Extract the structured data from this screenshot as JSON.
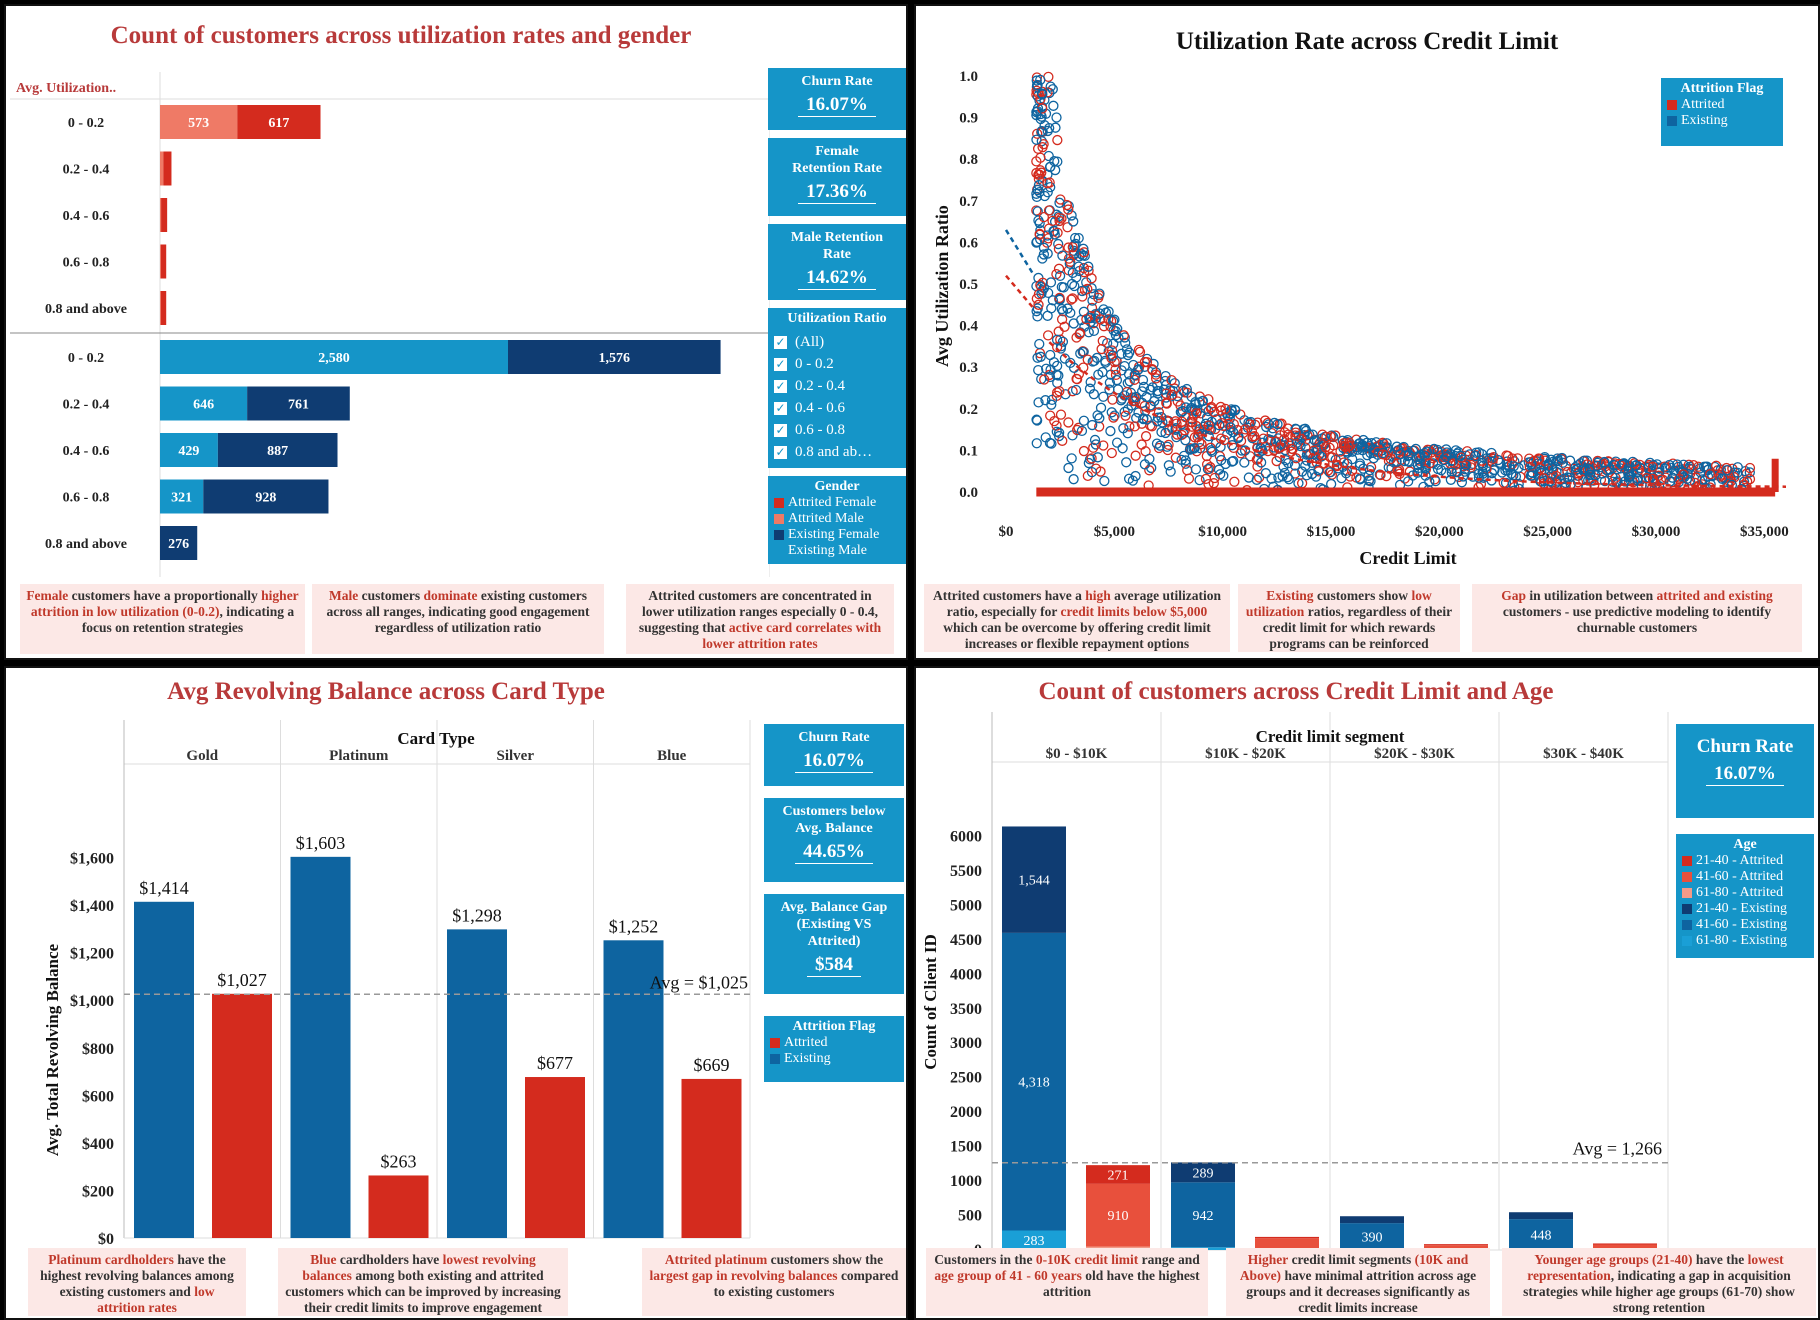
{
  "panel1": {
    "title": "Count of customers across utilization rates and gender",
    "header": "Avg. Utilization..",
    "categories": [
      "0 - 0.2",
      "0.2 - 0.4",
      "0.4 - 0.6",
      "0.6 - 0.8",
      "0.8 and above"
    ],
    "kpis": [
      {
        "label": "Churn Rate",
        "value": "16.07%"
      },
      {
        "label": "Female Retention Rate",
        "value": "17.36%"
      },
      {
        "label": "Male Retention Rate",
        "value": "14.62%"
      }
    ],
    "filter": {
      "title": "Utilization Ratio",
      "items": [
        "(All)",
        "0 - 0.2",
        "0.2 - 0.4",
        "0.4 - 0.6",
        "0.6 - 0.8",
        "0.8 and ab…"
      ]
    },
    "legend": {
      "title": "Gender",
      "items": [
        {
          "label": "Attrited Female",
          "color": "#d42b1e"
        },
        {
          "label": "Attrited Male",
          "color": "#ef7a66"
        },
        {
          "label": "Existing Female",
          "color": "#0f3c72"
        },
        {
          "label": "Existing Male",
          "color": "#1595c8"
        }
      ]
    },
    "notes": [
      {
        "pre": "",
        "hl": "Female",
        "mid": " customers have a proportionally ",
        "hl2": "higher attrition in low utilization (0-0.2)",
        "post": ", indicating a focus on retention strategies"
      },
      {
        "pre": "",
        "hl": "Male",
        "mid": " customers ",
        "hl2": "dominate",
        "post": " existing customers across all ranges, indicating good engagement regardless of utilization ratio"
      },
      {
        "pre": "Attrited customers are concentrated in lower utilization ranges especially 0 - 0.4, suggesting that ",
        "hl": "active card correlates with lower attrition rates",
        "mid": "",
        "hl2": "",
        "post": ""
      }
    ]
  },
  "panel2": {
    "title": "Utilization Rate across Credit Limit",
    "legend": {
      "title": "Attrition Flag",
      "items": [
        {
          "label": "Attrited",
          "color": "#d42b1e"
        },
        {
          "label": "Existing",
          "color": "#0e64a0"
        }
      ]
    },
    "notes": [
      {
        "pre": "Attrited customers have a ",
        "hl": "high",
        "mid": " average utilization ratio, especially for ",
        "hl2": "credit limits below $5,000",
        "post": " which can be overcome by offering credit limit increases or flexible repayment options"
      },
      {
        "pre": "",
        "hl": "Existing",
        "mid": " customers show ",
        "hl2": "low utilization",
        "post": " ratios, regardless of their credit limit for which rewards programs can be reinforced"
      },
      {
        "pre": "",
        "hl": "Gap",
        "mid": " in utilization between ",
        "hl2": "attrited and existing",
        "post": " customers - use predictive modeling to identify churnable customers"
      }
    ]
  },
  "panel3": {
    "title": "Avg Revolving Balance across Card Type",
    "header": "Card Type",
    "kpis": [
      {
        "label": "Churn Rate",
        "value": "16.07%"
      },
      {
        "label": "Customers below Avg. Balance",
        "value": "44.65%"
      },
      {
        "label": "Avg. Balance Gap (Existing VS Attrited)",
        "value": "$584"
      }
    ],
    "legend": {
      "title": "Attrition Flag",
      "items": [
        {
          "label": "Attrited",
          "color": "#d42b1e"
        },
        {
          "label": "Existing",
          "color": "#0e64a0"
        }
      ]
    },
    "notes": [
      {
        "pre": "",
        "hl": "Platinum cardholders",
        "mid": " have the highest revolving balances among existing customers and ",
        "hl2": "low attrition rates",
        "post": ""
      },
      {
        "pre": "",
        "hl": "Blue",
        "mid": " cardholders have ",
        "hl2": "lowest revolving balances",
        "post": " among both existing and attrited customers which can be improved by increasing their credit limits to improve engagement"
      },
      {
        "pre": "",
        "hl": "Attrited platinum",
        "mid": " customers show the ",
        "hl2": "largest gap in revolving balances",
        "post": " compared to existing customers"
      }
    ]
  },
  "panel4": {
    "title": "Count of customers across Credit Limit and Age",
    "header": "Credit limit segment",
    "kpis": [
      {
        "label": "Churn Rate",
        "value": "16.07%"
      }
    ],
    "legend": {
      "title": "Age",
      "items": [
        {
          "label": "21-40 - Attrited",
          "color": "#d42b1e"
        },
        {
          "label": "41-60 - Attrited",
          "color": "#e8503c"
        },
        {
          "label": "61-80 - Attrited",
          "color": "#f29a88"
        },
        {
          "label": "21-40 - Existing",
          "color": "#0f3c72"
        },
        {
          "label": "41-60 - Existing",
          "color": "#0e64a0"
        },
        {
          "label": "61-80 - Existing",
          "color": "#1a9fd6"
        }
      ]
    },
    "notes": [
      {
        "pre": "Customers in the ",
        "hl": "0-10K credit limit",
        "mid": " range and ",
        "hl2": "age group of 41 - 60 years",
        "post": " old have the highest attrition"
      },
      {
        "pre": "",
        "hl": "Higher",
        "mid": " credit limit segments ",
        "hl2": "(10K and Above)",
        "post": " have minimal attrition across age groups and it decreases significantly as credit limits increase"
      },
      {
        "pre": "",
        "hl": "Younger age groups (21-40)",
        "mid": " have the ",
        "hl2": "lowest representation",
        "post": ", indicating a gap in acquisition strategies while higher age groups (61-70) show strong retention"
      }
    ]
  },
  "chart_data": [
    {
      "type": "bar",
      "orientation": "horizontal",
      "stacked": true,
      "title": "Count of customers across utilization rates and gender",
      "categories": [
        "0 - 0.2",
        "0.2 - 0.4",
        "0.4 - 0.6",
        "0.6 - 0.8",
        "0.8 and above"
      ],
      "groups": [
        {
          "name": "Attrited",
          "series": [
            {
              "name": "Attrited Male",
              "color": "#ef7a66",
              "values": [
                573,
                25,
                8,
                6,
                6
              ]
            },
            {
              "name": "Attrited Female",
              "color": "#d42b1e",
              "values": [
                617,
                60,
                45,
                40,
                40
              ]
            }
          ]
        },
        {
          "name": "Existing",
          "series": [
            {
              "name": "Existing Male",
              "color": "#1595c8",
              "values": [
                2580,
                646,
                429,
                321,
                0
              ]
            },
            {
              "name": "Existing Female",
              "color": "#0f3c72",
              "values": [
                1576,
                761,
                887,
                928,
                276
              ]
            }
          ]
        }
      ],
      "xlim": [
        0,
        4300
      ]
    },
    {
      "type": "scatter",
      "title": "Utilization Rate across Credit Limit",
      "xlabel": "Credit Limit",
      "ylabel": "Avg Utilization Ratio",
      "xlim": [
        0,
        36000
      ],
      "ylim": [
        0,
        1.0
      ],
      "xticks": [
        "$0",
        "$5,000",
        "$10,000",
        "$15,000",
        "$20,000",
        "$25,000",
        "$30,000",
        "$35,000"
      ],
      "yticks": [
        "0.0",
        "0.1",
        "0.2",
        "0.3",
        "0.4",
        "0.5",
        "0.6",
        "0.7",
        "0.8",
        "0.9",
        "1.0"
      ],
      "series": [
        {
          "name": "Attrited",
          "color": "#d42b1e",
          "shape": "hyperbolic envelope y≈2000/x plus floor at 0.0"
        },
        {
          "name": "Existing",
          "color": "#0e64a0",
          "shape": "hyperbolic envelope y≈2000/x"
        }
      ]
    },
    {
      "type": "bar",
      "title": "Avg Revolving Balance across Card Type",
      "categories": [
        "Gold",
        "Platinum",
        "Silver",
        "Blue"
      ],
      "ylabel": "Avg. Total Revolving Balance",
      "ylim": [
        0,
        1800
      ],
      "yticks": [
        "$0",
        "$200",
        "$400",
        "$600",
        "$800",
        "$1,000",
        "$1,200",
        "$1,400",
        "$1,600"
      ],
      "series": [
        {
          "name": "Existing",
          "color": "#0e64a0",
          "values": [
            1414,
            1603,
            1298,
            1252
          ],
          "labels": [
            "$1,414",
            "$1,603",
            "$1,298",
            "$1,252"
          ]
        },
        {
          "name": "Attrited",
          "color": "#d42b1e",
          "values": [
            1027,
            263,
            677,
            669
          ],
          "labels": [
            "$1,027",
            "$263",
            "$677",
            "$669"
          ]
        }
      ],
      "reference_line": {
        "value": 1025,
        "label": "Avg = $1,025"
      }
    },
    {
      "type": "bar",
      "stacked": true,
      "title": "Count of customers across Credit Limit and Age",
      "categories": [
        "$0 - $10K",
        "$10K - $20K",
        "$20K - $30K",
        "$30K - $40K"
      ],
      "ylabel": "Count of Client ID",
      "ylim": [
        0,
        6500
      ],
      "yticks": [
        "0",
        "500",
        "1000",
        "1500",
        "2000",
        "2500",
        "3000",
        "3500",
        "4000",
        "4500",
        "5000",
        "5500",
        "6000"
      ],
      "series": [
        {
          "group": "Existing",
          "name": "61-80 - Existing",
          "color": "#1a9fd6",
          "values": [
            283,
            40,
            0,
            0
          ],
          "labels": [
            "283",
            "",
            "",
            ""
          ]
        },
        {
          "group": "Existing",
          "name": "41-60 - Existing",
          "color": "#0e64a0",
          "values": [
            4318,
            942,
            390,
            448
          ],
          "labels": [
            "4,318",
            "942",
            "390",
            "448"
          ]
        },
        {
          "group": "Existing",
          "name": "21-40 - Existing",
          "color": "#0f3c72",
          "values": [
            1544,
            289,
            100,
            100
          ],
          "labels": [
            "1,544",
            "289",
            "",
            ""
          ]
        },
        {
          "group": "Attrited",
          "name": "61-80 - Attrited",
          "color": "#f29a88",
          "values": [
            50,
            0,
            0,
            0
          ],
          "labels": [
            "",
            "",
            "",
            ""
          ]
        },
        {
          "group": "Attrited",
          "name": "41-60 - Attrited",
          "color": "#e8503c",
          "values": [
            910,
            170,
            70,
            80
          ],
          "labels": [
            "910",
            "",
            "",
            ""
          ]
        },
        {
          "group": "Attrited",
          "name": "21-40 - Attrited",
          "color": "#d42b1e",
          "values": [
            271,
            20,
            15,
            15
          ],
          "labels": [
            "271",
            "",
            "",
            ""
          ]
        }
      ],
      "reference_line": {
        "value": 1266,
        "label": "Avg = 1,266"
      }
    }
  ]
}
